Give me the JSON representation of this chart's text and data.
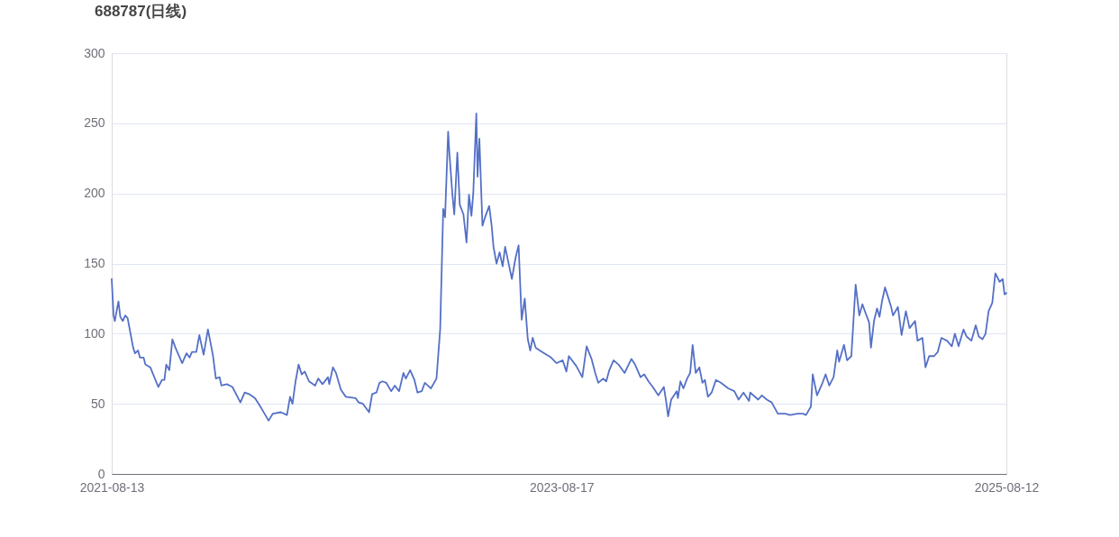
{
  "chart_data": {
    "type": "line",
    "title": "688787(日线)",
    "x": [
      "2021-08-13",
      "2021-08-16",
      "2021-08-18",
      "2021-08-24",
      "2021-08-27",
      "2021-08-31",
      "2021-09-04",
      "2021-09-08",
      "2021-09-17",
      "2021-09-20",
      "2021-09-25",
      "2021-09-28",
      "2021-10-04",
      "2021-10-07",
      "2021-10-15",
      "2021-10-28",
      "2021-11-03",
      "2021-11-07",
      "2021-11-10",
      "2021-11-15",
      "2021-11-20",
      "2021-11-25",
      "2021-12-06",
      "2021-12-13",
      "2021-12-18",
      "2021-12-22",
      "2021-12-29",
      "2022-01-03",
      "2022-01-10",
      "2022-01-17",
      "2022-01-25",
      "2022-01-30",
      "2022-02-05",
      "2022-02-08",
      "2022-02-17",
      "2022-02-26",
      "2022-03-11",
      "2022-03-18",
      "2022-03-25",
      "2022-04-04",
      "2022-04-14",
      "2022-04-26",
      "2022-05-03",
      "2022-05-16",
      "2022-05-26",
      "2022-05-31",
      "2022-06-04",
      "2022-06-09",
      "2022-06-14",
      "2022-06-19",
      "2022-06-24",
      "2022-07-01",
      "2022-07-11",
      "2022-07-16",
      "2022-07-23",
      "2022-08-01",
      "2022-08-03",
      "2022-08-09",
      "2022-08-14",
      "2022-08-22",
      "2022-08-30",
      "2022-09-15",
      "2022-09-20",
      "2022-09-27",
      "2022-10-07",
      "2022-10-12",
      "2022-10-19",
      "2022-10-24",
      "2022-10-29",
      "2022-11-04",
      "2022-11-12",
      "2022-11-18",
      "2022-11-25",
      "2022-12-02",
      "2022-12-06",
      "2022-12-13",
      "2022-12-20",
      "2022-12-25",
      "2023-01-01",
      "2023-01-06",
      "2023-01-16",
      "2023-01-25",
      "2023-01-31",
      "2023-02-05",
      "2023-02-08",
      "2023-02-13",
      "2023-02-15",
      "2023-02-20",
      "2023-02-23",
      "2023-02-28",
      "2023-03-04",
      "2023-03-10",
      "2023-03-15",
      "2023-03-19",
      "2023-03-23",
      "2023-03-26",
      "2023-03-31",
      "2023-04-02",
      "2023-04-05",
      "2023-04-10",
      "2023-04-15",
      "2023-04-21",
      "2023-04-25",
      "2023-04-28",
      "2023-05-03",
      "2023-05-08",
      "2023-05-13",
      "2023-05-17",
      "2023-05-28",
      "2023-06-03",
      "2023-06-08",
      "2023-06-13",
      "2023-06-18",
      "2023-06-23",
      "2023-06-27",
      "2023-07-01",
      "2023-07-06",
      "2023-07-16",
      "2023-07-31",
      "2023-08-09",
      "2023-08-19",
      "2023-08-25",
      "2023-08-29",
      "2023-09-10",
      "2023-09-20",
      "2023-09-27",
      "2023-10-05",
      "2023-10-11",
      "2023-10-16",
      "2023-10-24",
      "2023-10-29",
      "2023-11-03",
      "2023-11-10",
      "2023-11-18",
      "2023-11-28",
      "2023-12-09",
      "2023-12-15",
      "2023-12-24",
      "2023-12-30",
      "2024-01-06",
      "2024-01-13",
      "2024-01-22",
      "2024-01-31",
      "2024-02-04",
      "2024-02-07",
      "2024-02-12",
      "2024-02-21",
      "2024-02-23",
      "2024-02-27",
      "2024-03-03",
      "2024-03-09",
      "2024-03-14",
      "2024-03-18",
      "2024-03-23",
      "2024-03-29",
      "2024-04-03",
      "2024-04-07",
      "2024-04-12",
      "2024-04-18",
      "2024-04-25",
      "2024-05-03",
      "2024-05-15",
      "2024-05-25",
      "2024-06-01",
      "2024-06-09",
      "2024-06-18",
      "2024-06-20",
      "2024-07-03",
      "2024-07-09",
      "2024-07-17",
      "2024-07-25",
      "2024-08-04",
      "2024-08-16",
      "2024-08-24",
      "2024-09-05",
      "2024-09-14",
      "2024-09-19",
      "2024-09-27",
      "2024-09-30",
      "2024-10-07",
      "2024-10-16",
      "2024-10-21",
      "2024-10-27",
      "2024-11-03",
      "2024-11-09",
      "2024-11-12",
      "2024-11-20",
      "2024-11-25",
      "2024-12-02",
      "2024-12-09",
      "2024-12-15",
      "2024-12-20",
      "2024-12-25",
      "2024-12-31",
      "2025-01-03",
      "2025-01-08",
      "2025-01-13",
      "2025-01-17",
      "2025-01-21",
      "2025-01-26",
      "2025-01-31",
      "2025-02-05",
      "2025-02-08",
      "2025-02-16",
      "2025-02-22",
      "2025-03-01",
      "2025-03-07",
      "2025-03-16",
      "2025-03-20",
      "2025-03-28",
      "2025-04-02",
      "2025-04-08",
      "2025-04-16",
      "2025-04-22",
      "2025-04-28",
      "2025-05-07",
      "2025-05-15",
      "2025-05-20",
      "2025-05-26",
      "2025-06-03",
      "2025-06-08",
      "2025-06-16",
      "2025-06-23",
      "2025-06-28",
      "2025-07-04",
      "2025-07-09",
      "2025-07-14",
      "2025-07-20",
      "2025-07-25",
      "2025-08-01",
      "2025-08-06",
      "2025-08-09",
      "2025-08-12"
    ],
    "series": [
      {
        "color": "#5470c6",
        "values": [
          139,
          113,
          109,
          123,
          112,
          109,
          113,
          111,
          90,
          86,
          88,
          83,
          83,
          78,
          76,
          62,
          67,
          67,
          78,
          74,
          96,
          90,
          79,
          86,
          83,
          87,
          87,
          99,
          85,
          103,
          85,
          68,
          69,
          63,
          64,
          62,
          51,
          58,
          57,
          54,
          47,
          38,
          43,
          44,
          42,
          55,
          50,
          66,
          78,
          71,
          73,
          66,
          63,
          68,
          64,
          69,
          64,
          76,
          72,
          60,
          55,
          54,
          51,
          50,
          44,
          57,
          58,
          65,
          66,
          65,
          59,
          63,
          59,
          72,
          68,
          74,
          67,
          58,
          59,
          65,
          61,
          68,
          103,
          189,
          183,
          244,
          229,
          199,
          185,
          229,
          192,
          185,
          165,
          199,
          184,
          200,
          257,
          212,
          239,
          177,
          184,
          191,
          177,
          162,
          150,
          158,
          148,
          162,
          139,
          154,
          163,
          110,
          125,
          96,
          88,
          97,
          90,
          87,
          83,
          79,
          81,
          73,
          84,
          77,
          69,
          91,
          82,
          72,
          65,
          68,
          66,
          74,
          81,
          78,
          72,
          82,
          78,
          69,
          71,
          66,
          62,
          56,
          62,
          51,
          41,
          53,
          59,
          54,
          66,
          61,
          68,
          72,
          92,
          72,
          76,
          65,
          67,
          55,
          58,
          67,
          65,
          61,
          59,
          53,
          58,
          52,
          58,
          53,
          56,
          53,
          51,
          43,
          43,
          42,
          43,
          43,
          42,
          48,
          71,
          56,
          65,
          71,
          63,
          69,
          88,
          80,
          92,
          81,
          84,
          135,
          113,
          121,
          115,
          108,
          90,
          109,
          118,
          112,
          123,
          133,
          126,
          119,
          113,
          119,
          99,
          116,
          104,
          109,
          95,
          97,
          76,
          84,
          84,
          87,
          97,
          95,
          91,
          100,
          91,
          103,
          98,
          95,
          106,
          98,
          96,
          100,
          116,
          122,
          143,
          137,
          139,
          128,
          129
        ]
      }
    ],
    "xlim": [
      "2021-08-13",
      "2025-08-12"
    ],
    "xticks": [
      "2021-08-13",
      "2023-08-17",
      "2025-08-12"
    ],
    "ylim": [
      0,
      300
    ],
    "yticks": [
      0,
      50,
      100,
      150,
      200,
      250,
      300
    ],
    "grid": "y",
    "line_style": "solid"
  }
}
